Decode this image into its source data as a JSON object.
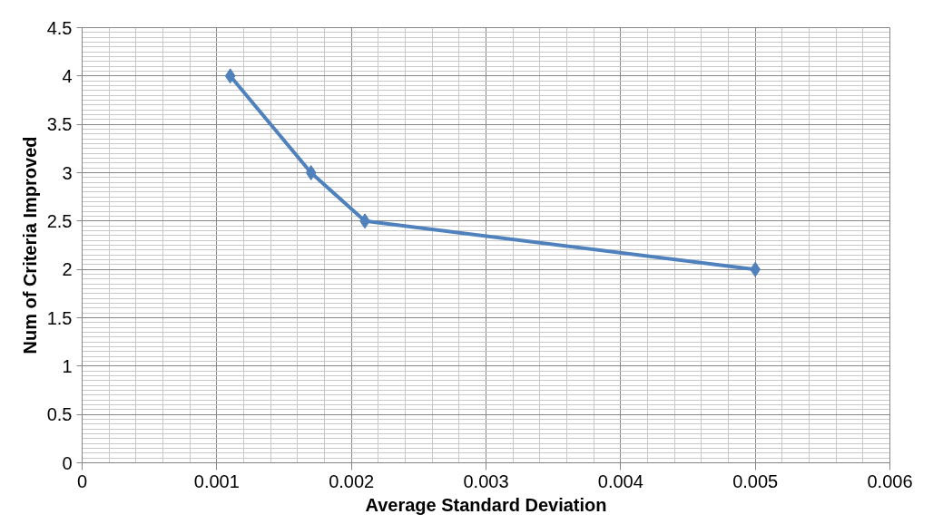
{
  "chart_data": {
    "type": "line",
    "xlabel": "Average Standard Deviation",
    "ylabel": "Num of Criteria Improved",
    "x": [
      0.0011,
      0.0017,
      0.0021,
      0.005
    ],
    "series": [
      {
        "color": "#4f81bd",
        "values": [
          4,
          3,
          2.5,
          2
        ]
      }
    ],
    "xlim": [
      0,
      0.006
    ],
    "xticks": [
      0,
      0.001,
      0.002,
      0.003,
      0.004,
      0.005,
      0.006
    ],
    "ylim": [
      0,
      4.5
    ],
    "yticks": [
      0,
      0.5,
      1,
      1.5,
      2,
      2.5,
      3,
      3.5,
      4,
      4.5
    ],
    "grid": true,
    "marker": "diamond",
    "line_style": "solid"
  }
}
